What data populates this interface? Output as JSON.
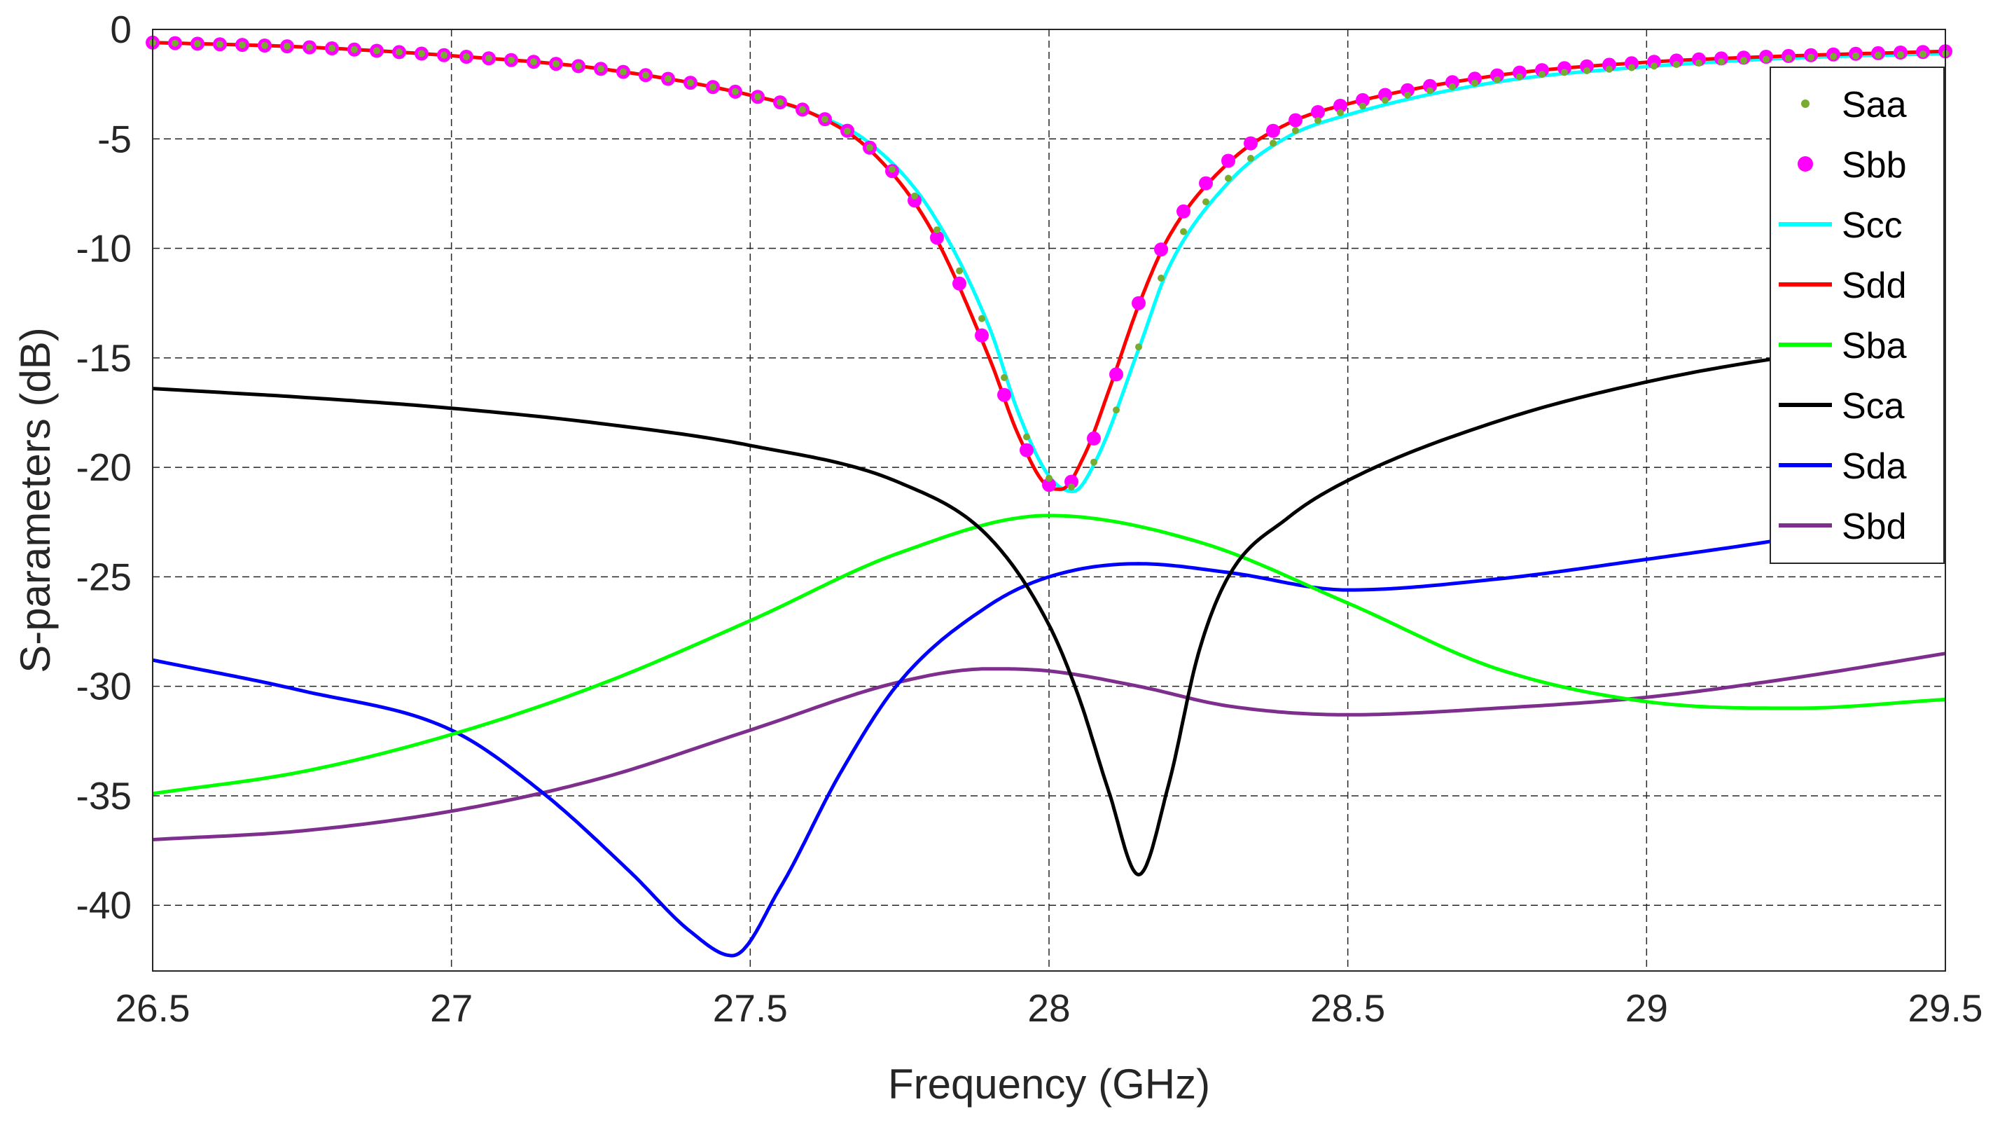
{
  "chart_data": {
    "type": "line",
    "title": "",
    "xlabel": "Frequency (GHz)",
    "ylabel": "S-parameters (dB)",
    "xlim": [
      26.5,
      29.5
    ],
    "ylim": [
      -43,
      0
    ],
    "xticks": [
      26.5,
      27,
      27.5,
      28,
      28.5,
      29,
      29.5
    ],
    "xtick_labels": [
      "26.5",
      "27",
      "27.5",
      "28",
      "28.5",
      "29",
      "29.5"
    ],
    "yticks": [
      0,
      -5,
      -10,
      -15,
      -20,
      -25,
      -30,
      -35,
      -40
    ],
    "ytick_labels": [
      "0",
      "-5",
      "-10",
      "-15",
      "-20",
      "-25",
      "-30",
      "-35",
      "-40"
    ],
    "grid": true,
    "legend_position": "top-right",
    "series": [
      {
        "name": "Saa",
        "color": "#77AC30",
        "style": "dots",
        "x": [
          26.5,
          26.75,
          27.0,
          27.25,
          27.5,
          27.6,
          27.7,
          27.8,
          27.9,
          27.95,
          28.0,
          28.04,
          28.08,
          28.15,
          28.2,
          28.3,
          28.4,
          28.5,
          28.75,
          29.0,
          29.25,
          29.5
        ],
        "y": [
          -0.6,
          -0.8,
          -1.2,
          -1.8,
          -3.0,
          -3.8,
          -5.4,
          -8.6,
          -14.0,
          -17.8,
          -20.5,
          -20.9,
          -19.5,
          -14.5,
          -10.5,
          -6.8,
          -4.8,
          -3.7,
          -2.3,
          -1.7,
          -1.3,
          -1.1
        ]
      },
      {
        "name": "Sbb",
        "color": "#FF00FF",
        "style": "markers",
        "x": [
          26.5,
          26.75,
          27.0,
          27.25,
          27.5,
          27.6,
          27.7,
          27.8,
          27.9,
          27.95,
          28.0,
          28.02,
          28.06,
          28.1,
          28.15,
          28.2,
          28.3,
          28.4,
          28.5,
          28.75,
          29.0,
          29.25,
          29.5
        ],
        "y": [
          -0.6,
          -0.8,
          -1.2,
          -1.8,
          -3.0,
          -3.8,
          -5.4,
          -8.9,
          -14.8,
          -18.5,
          -20.8,
          -21.0,
          -19.6,
          -16.8,
          -12.5,
          -9.4,
          -6.0,
          -4.3,
          -3.4,
          -2.1,
          -1.5,
          -1.2,
          -1.0
        ]
      },
      {
        "name": "Scc",
        "color": "#00FFFF",
        "style": "line",
        "x": [
          26.5,
          26.75,
          27.0,
          27.25,
          27.5,
          27.6,
          27.7,
          27.8,
          27.9,
          27.95,
          28.0,
          28.04,
          28.08,
          28.15,
          28.2,
          28.3,
          28.4,
          28.5,
          28.75,
          29.0,
          29.25,
          29.5
        ],
        "y": [
          -0.6,
          -0.8,
          -1.2,
          -1.8,
          -3.0,
          -3.8,
          -5.2,
          -8.2,
          -13.6,
          -17.6,
          -20.4,
          -21.1,
          -19.6,
          -14.6,
          -10.9,
          -7.0,
          -4.9,
          -3.9,
          -2.4,
          -1.7,
          -1.3,
          -1.1
        ]
      },
      {
        "name": "Sdd",
        "color": "#FF0000",
        "style": "line",
        "x": [
          26.5,
          26.75,
          27.0,
          27.25,
          27.5,
          27.6,
          27.7,
          27.8,
          27.9,
          27.95,
          28.0,
          28.02,
          28.06,
          28.1,
          28.15,
          28.2,
          28.3,
          28.4,
          28.5,
          28.75,
          29.0,
          29.25,
          29.5
        ],
        "y": [
          -0.6,
          -0.8,
          -1.2,
          -1.8,
          -3.0,
          -3.8,
          -5.5,
          -9.0,
          -15.0,
          -18.6,
          -20.9,
          -21.0,
          -19.4,
          -16.5,
          -12.6,
          -9.5,
          -6.1,
          -4.3,
          -3.4,
          -2.1,
          -1.5,
          -1.2,
          -1.0
        ]
      },
      {
        "name": "Sba",
        "color": "#00FF00",
        "style": "line",
        "x": [
          26.5,
          26.75,
          27.0,
          27.25,
          27.5,
          27.75,
          28.0,
          28.25,
          28.5,
          28.75,
          29.0,
          29.25,
          29.5
        ],
        "y": [
          -34.9,
          -33.9,
          -32.2,
          -29.9,
          -27.0,
          -23.9,
          -22.2,
          -23.4,
          -26.2,
          -29.2,
          -30.7,
          -31.0,
          -30.6
        ]
      },
      {
        "name": "Sca",
        "color": "#000000",
        "style": "line",
        "x": [
          26.5,
          26.75,
          27.0,
          27.25,
          27.5,
          27.75,
          27.9,
          28.0,
          28.05,
          28.1,
          28.15,
          28.2,
          28.25,
          28.3,
          28.4,
          28.5,
          28.75,
          29.0,
          29.25,
          29.5
        ],
        "y": [
          -16.4,
          -16.8,
          -17.3,
          -18.0,
          -19.0,
          -20.7,
          -23.2,
          -27.2,
          -30.5,
          -34.8,
          -38.6,
          -34.5,
          -28.5,
          -25.0,
          -22.3,
          -20.6,
          -17.9,
          -16.1,
          -14.9,
          -14.2
        ]
      },
      {
        "name": "Sda",
        "color": "#0000FF",
        "style": "line",
        "x": [
          26.5,
          26.75,
          27.0,
          27.15,
          27.3,
          27.4,
          27.47,
          27.55,
          27.65,
          27.75,
          27.9,
          28.0,
          28.15,
          28.3,
          28.5,
          28.75,
          29.0,
          29.25,
          29.5
        ],
        "y": [
          -28.8,
          -30.2,
          -32.0,
          -34.8,
          -38.5,
          -41.2,
          -42.3,
          -39.2,
          -34.0,
          -29.8,
          -26.3,
          -25.0,
          -24.4,
          -24.8,
          -25.6,
          -25.1,
          -24.2,
          -23.2,
          -22.0
        ]
      },
      {
        "name": "Sbd",
        "color": "#7E2F8E",
        "style": "line",
        "x": [
          26.5,
          26.75,
          27.0,
          27.25,
          27.5,
          27.75,
          27.9,
          28.0,
          28.15,
          28.3,
          28.5,
          28.75,
          29.0,
          29.25,
          29.5
        ],
        "y": [
          -37.0,
          -36.6,
          -35.7,
          -34.2,
          -32.0,
          -29.8,
          -29.2,
          -29.3,
          -30.0,
          -30.9,
          -31.3,
          -31.0,
          -30.5,
          -29.6,
          -28.5
        ]
      }
    ]
  }
}
